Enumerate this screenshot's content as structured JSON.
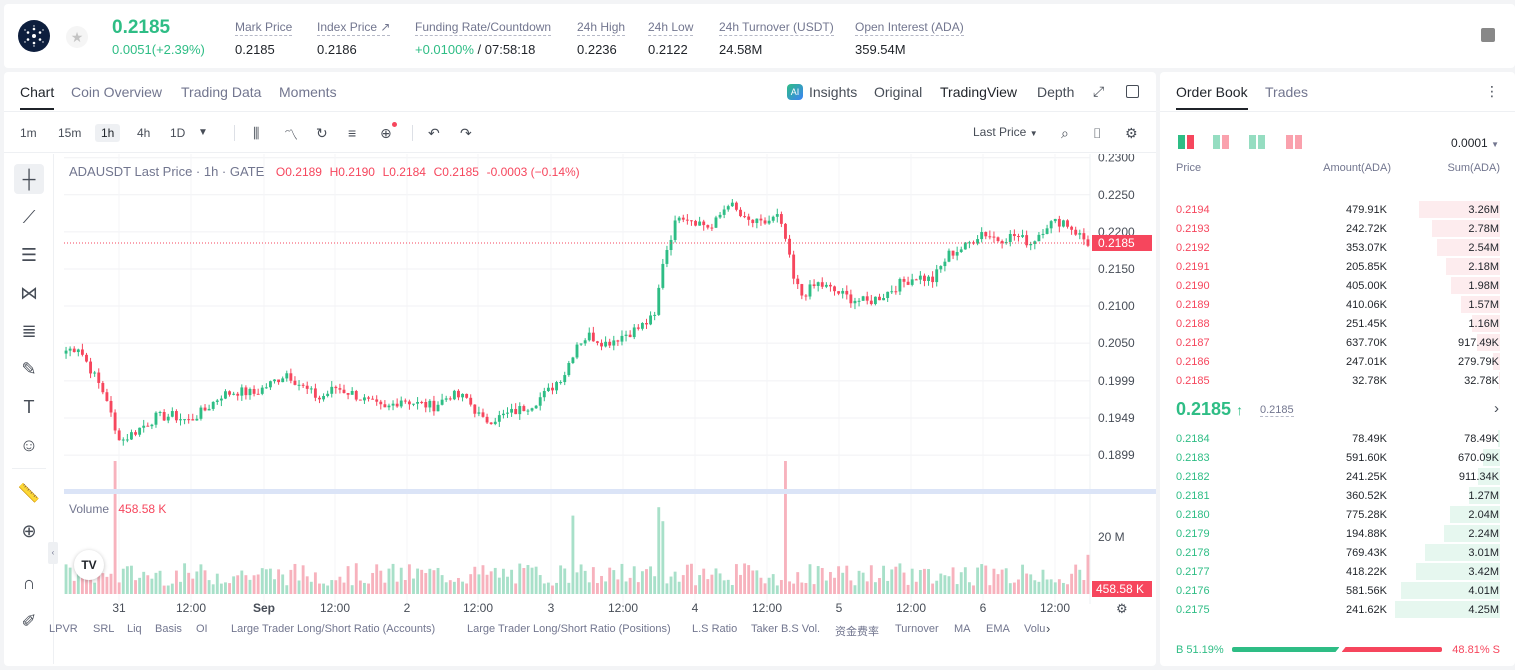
{
  "ticker": {
    "price": "0.2185",
    "change": "0.0051(+2.39%)",
    "stats": [
      {
        "label": "Mark Price",
        "value": "0.2185"
      },
      {
        "label": "Index Price ↗",
        "value": "0.2186"
      },
      {
        "label": "Funding Rate/Countdown",
        "value_green": "+0.0100%",
        "value": " / 07:58:18"
      },
      {
        "label": "24h High",
        "value": "0.2236"
      },
      {
        "label": "24h Low",
        "value": "0.2122"
      },
      {
        "label": "24h Turnover (USDT)",
        "value": "24.58M"
      },
      {
        "label": "Open Interest (ADA)",
        "value": "359.54M"
      }
    ]
  },
  "chart_tabs": [
    "Chart",
    "Coin Overview",
    "Trading Data",
    "Moments"
  ],
  "chart_modes": {
    "insights": "Insights",
    "original": "Original",
    "tradingview": "TradingView",
    "depth": "Depth"
  },
  "timeframes": [
    "1m",
    "15m",
    "1h",
    "4h",
    "1D"
  ],
  "price_type": "Last Price",
  "legend": {
    "symbol": "ADAUSDT Last Price · 1h · GATE",
    "o": "O0.2189",
    "h": "H0.2190",
    "l": "L0.2184",
    "c": "C0.2185",
    "chg": "-0.0003 (−0.14%)"
  },
  "volume_label": "Volume",
  "volume_value": "458.58 K",
  "current_price_tag": "0.2185",
  "volume_tag": "458.58 K",
  "bottom_indicators": [
    "LPVR",
    "SRL",
    "Liq",
    "Basis",
    "OI",
    "Large Trader Long/Short Ratio (Accounts)",
    "Large Trader Long/Short Ratio (Positions)",
    "L.S Ratio",
    "Taker B.S Vol.",
    "资金费率",
    "Turnover",
    "MA",
    "EMA",
    "Volu"
  ],
  "chart_data": {
    "type": "candlestick",
    "y_ticks": [
      "0.2300",
      "0.2250",
      "0.2200",
      "0.2150",
      "0.2100",
      "0.2050",
      "0.1999",
      "0.1949",
      "0.1899"
    ],
    "ylim": [
      0.186,
      0.2305
    ],
    "volume_tick": "20 M",
    "x_ticks": [
      "31",
      "12:00",
      "Sep",
      "12:00",
      "2",
      "12:00",
      "3",
      "12:00",
      "4",
      "12:00",
      "5",
      "12:00",
      "6",
      "12:00"
    ],
    "close_anchors": [
      [
        0,
        0.204
      ],
      [
        3,
        0.2045
      ],
      [
        7,
        0.2005
      ],
      [
        10,
        0.1975
      ],
      [
        12,
        0.193
      ],
      [
        14,
        0.192
      ],
      [
        18,
        0.1935
      ],
      [
        22,
        0.195
      ],
      [
        26,
        0.1952
      ],
      [
        30,
        0.1945
      ],
      [
        34,
        0.196
      ],
      [
        38,
        0.198
      ],
      [
        42,
        0.1985
      ],
      [
        46,
        0.1982
      ],
      [
        50,
        0.1995
      ],
      [
        54,
        0.201
      ],
      [
        58,
        0.199
      ],
      [
        62,
        0.1975
      ],
      [
        66,
        0.199
      ],
      [
        70,
        0.1982
      ],
      [
        74,
        0.197
      ],
      [
        78,
        0.196
      ],
      [
        82,
        0.1975
      ],
      [
        86,
        0.1968
      ],
      [
        90,
        0.1965
      ],
      [
        94,
        0.198
      ],
      [
        98,
        0.1975
      ],
      [
        102,
        0.1945
      ],
      [
        106,
        0.195
      ],
      [
        110,
        0.1958
      ],
      [
        114,
        0.1968
      ],
      [
        118,
        0.1985
      ],
      [
        122,
        0.201
      ],
      [
        125,
        0.205
      ],
      [
        128,
        0.206
      ],
      [
        132,
        0.205
      ],
      [
        136,
        0.206
      ],
      [
        140,
        0.207
      ],
      [
        144,
        0.2085
      ],
      [
        146,
        0.216
      ],
      [
        148,
        0.2195
      ],
      [
        150,
        0.2225
      ],
      [
        154,
        0.2215
      ],
      [
        158,
        0.2205
      ],
      [
        162,
        0.224
      ],
      [
        166,
        0.2215
      ],
      [
        170,
        0.221
      ],
      [
        174,
        0.222
      ],
      [
        176,
        0.219
      ],
      [
        178,
        0.2135
      ],
      [
        180,
        0.2115
      ],
      [
        184,
        0.213
      ],
      [
        188,
        0.212
      ],
      [
        192,
        0.211
      ],
      [
        196,
        0.2105
      ],
      [
        200,
        0.2115
      ],
      [
        204,
        0.213
      ],
      [
        208,
        0.214
      ],
      [
        212,
        0.2135
      ],
      [
        216,
        0.217
      ],
      [
        220,
        0.218
      ],
      [
        224,
        0.22
      ],
      [
        228,
        0.219
      ],
      [
        232,
        0.2195
      ],
      [
        236,
        0.2185
      ],
      [
        240,
        0.221
      ],
      [
        244,
        0.2215
      ],
      [
        248,
        0.2195
      ],
      [
        250,
        0.2185
      ]
    ],
    "volume_peaks": [
      [
        12,
        0.95
      ],
      [
        124,
        0.56
      ],
      [
        145,
        0.62
      ],
      [
        146,
        0.52
      ],
      [
        176,
        0.95
      ],
      [
        250,
        0.28
      ]
    ]
  },
  "orderbook": {
    "tabs": [
      "Order Book",
      "Trades"
    ],
    "precision": "0.0001",
    "headers": {
      "price": "Price",
      "amount": "Amount(ADA)",
      "sum": "Sum(ADA)"
    },
    "asks": [
      {
        "p": "0.2194",
        "a": "479.91K",
        "s": "3.26M",
        "d": 0.77
      },
      {
        "p": "0.2193",
        "a": "242.72K",
        "s": "2.78M",
        "d": 0.65
      },
      {
        "p": "0.2192",
        "a": "353.07K",
        "s": "2.54M",
        "d": 0.6
      },
      {
        "p": "0.2191",
        "a": "205.85K",
        "s": "2.18M",
        "d": 0.51
      },
      {
        "p": "0.2190",
        "a": "405.00K",
        "s": "1.98M",
        "d": 0.47
      },
      {
        "p": "0.2189",
        "a": "410.06K",
        "s": "1.57M",
        "d": 0.37
      },
      {
        "p": "0.2188",
        "a": "251.45K",
        "s": "1.16M",
        "d": 0.27
      },
      {
        "p": "0.2187",
        "a": "637.70K",
        "s": "917.49K",
        "d": 0.22
      },
      {
        "p": "0.2186",
        "a": "247.01K",
        "s": "279.79K",
        "d": 0.07
      },
      {
        "p": "0.2185",
        "a": "32.78K",
        "s": "32.78K",
        "d": 0.01
      }
    ],
    "mid_price": "0.2185",
    "mid_mark": "0.2185",
    "bids": [
      {
        "p": "0.2184",
        "a": "78.49K",
        "s": "78.49K",
        "d": 0.02
      },
      {
        "p": "0.2183",
        "a": "591.60K",
        "s": "670.09K",
        "d": 0.16
      },
      {
        "p": "0.2182",
        "a": "241.25K",
        "s": "911.34K",
        "d": 0.21
      },
      {
        "p": "0.2181",
        "a": "360.52K",
        "s": "1.27M",
        "d": 0.3
      },
      {
        "p": "0.2180",
        "a": "775.28K",
        "s": "2.04M",
        "d": 0.48
      },
      {
        "p": "0.2179",
        "a": "194.88K",
        "s": "2.24M",
        "d": 0.53
      },
      {
        "p": "0.2178",
        "a": "769.43K",
        "s": "3.01M",
        "d": 0.71
      },
      {
        "p": "0.2177",
        "a": "418.22K",
        "s": "3.42M",
        "d": 0.8
      },
      {
        "p": "0.2176",
        "a": "581.56K",
        "s": "4.01M",
        "d": 0.94
      },
      {
        "p": "0.2175",
        "a": "241.62K",
        "s": "4.25M",
        "d": 1.0
      }
    ],
    "buy_ratio": "B 51.19%",
    "sell_ratio": "48.81% S",
    "buy_fraction": 0.5119
  },
  "colors": {
    "up": "#2ebd85",
    "down": "#f6465d"
  }
}
